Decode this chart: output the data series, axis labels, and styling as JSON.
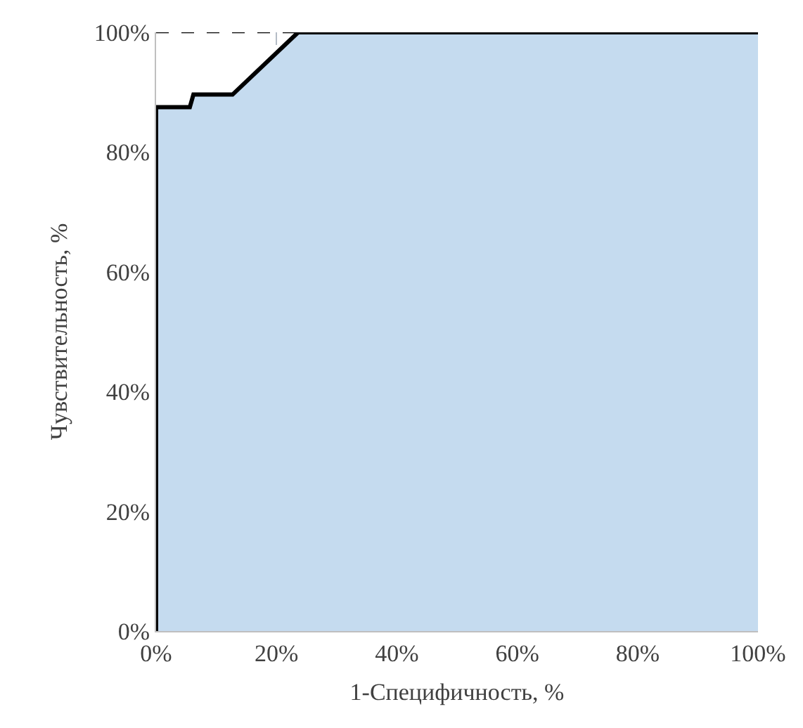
{
  "chart_data": {
    "type": "area",
    "xlabel": "1-Специфичность, %",
    "ylabel": "Чувствительность, %",
    "x": [
      0,
      0,
      5.6,
      6.2,
      12.7,
      23.6,
      100
    ],
    "series": [
      {
        "color": "#c5dbef",
        "values": [
          0,
          87.5,
          87.5,
          89.6,
          89.6,
          100,
          100
        ]
      }
    ],
    "xlim": [
      0,
      100
    ],
    "ylim": [
      0,
      100
    ],
    "xticks": [
      {
        "value": 0,
        "label": "0%"
      },
      {
        "value": 20,
        "label": "20%"
      },
      {
        "value": 40,
        "label": "40%"
      },
      {
        "value": 60,
        "label": "60%"
      },
      {
        "value": 80,
        "label": "80%"
      },
      {
        "value": 100,
        "label": "100%"
      }
    ],
    "yticks": [
      {
        "value": 0,
        "label": "0%"
      },
      {
        "value": 20,
        "label": "20%"
      },
      {
        "value": 40,
        "label": "40%"
      },
      {
        "value": 60,
        "label": "60%"
      },
      {
        "value": 80,
        "label": "80%"
      },
      {
        "value": 100,
        "label": "100%"
      }
    ],
    "grid": true,
    "ref_lines": [
      {
        "axis": "y",
        "value": 100,
        "color": "#000000",
        "line_style": "dashed"
      }
    ]
  }
}
